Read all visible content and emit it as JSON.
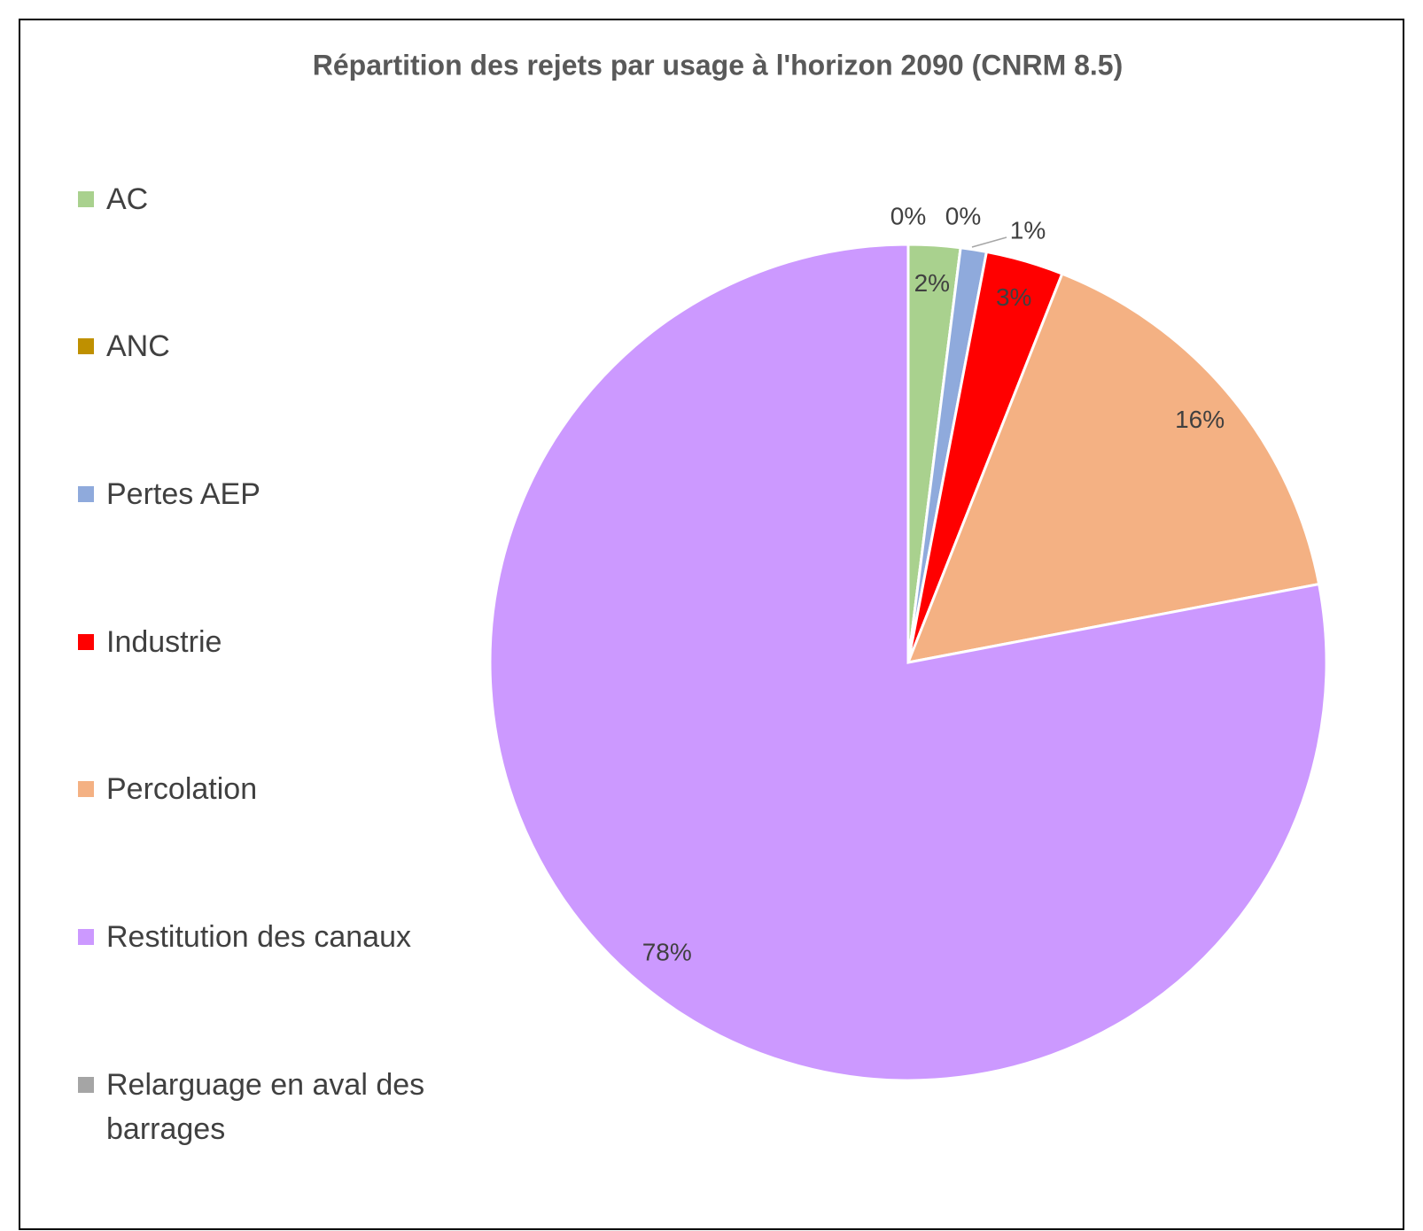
{
  "chart_data": {
    "type": "pie",
    "title": "Répartition des rejets par usage à l'horizon 2090 (CNRM 8.5)",
    "categories": [
      "AC",
      "ANC",
      "Pertes AEP",
      "Industrie",
      "Percolation",
      "Restitution des canaux",
      "Relarguage en aval des barrages"
    ],
    "values": [
      2,
      0,
      1,
      3,
      16,
      78,
      0
    ],
    "value_labels": [
      "2%",
      "0%",
      "1%",
      "3%",
      "16%",
      "78%",
      "0%"
    ],
    "colors": [
      "#a9d18e",
      "#bf9000",
      "#8faadc",
      "#ff0000",
      "#f4b183",
      "#cc99ff",
      "#a5a5a5"
    ],
    "legend": "left"
  }
}
